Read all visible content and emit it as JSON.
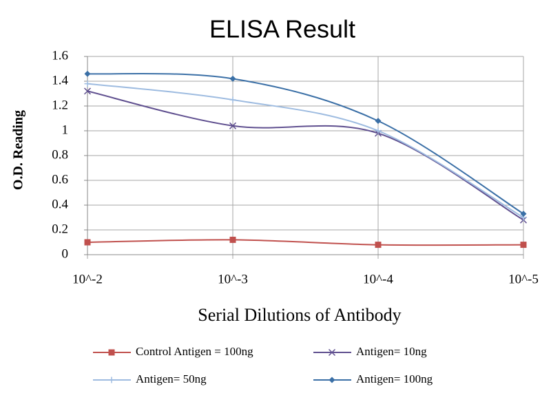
{
  "chart_data": {
    "type": "line",
    "title": "ELISA Result",
    "x_label": "Serial Dilutions  of Antibody",
    "y_label": "O.D. Reading",
    "categories": [
      "10^-2",
      "10^-3",
      "10^-4",
      "10^-5"
    ],
    "series": [
      {
        "name": "Control Antigen = 100ng",
        "color": "#c0504d",
        "marker": "square",
        "values": [
          0.1,
          0.12,
          0.08,
          0.08
        ]
      },
      {
        "name": "Antigen= 10ng",
        "color": "#5f4f8f",
        "marker": "x",
        "values": [
          1.32,
          1.04,
          0.98,
          0.28
        ]
      },
      {
        "name": "Antigen= 50ng",
        "color": "#9dbbe0",
        "marker": "plus",
        "values": [
          1.38,
          1.25,
          1.0,
          0.3
        ]
      },
      {
        "name": "Antigen= 100ng",
        "color": "#3a6fa6",
        "marker": "diamond",
        "values": [
          1.46,
          1.42,
          1.08,
          0.33
        ]
      }
    ],
    "ylim": [
      0,
      1.6
    ],
    "yticks": [
      0,
      0.2,
      0.4,
      0.6,
      0.8,
      1,
      1.2,
      1.4,
      1.6
    ],
    "grid": true
  }
}
